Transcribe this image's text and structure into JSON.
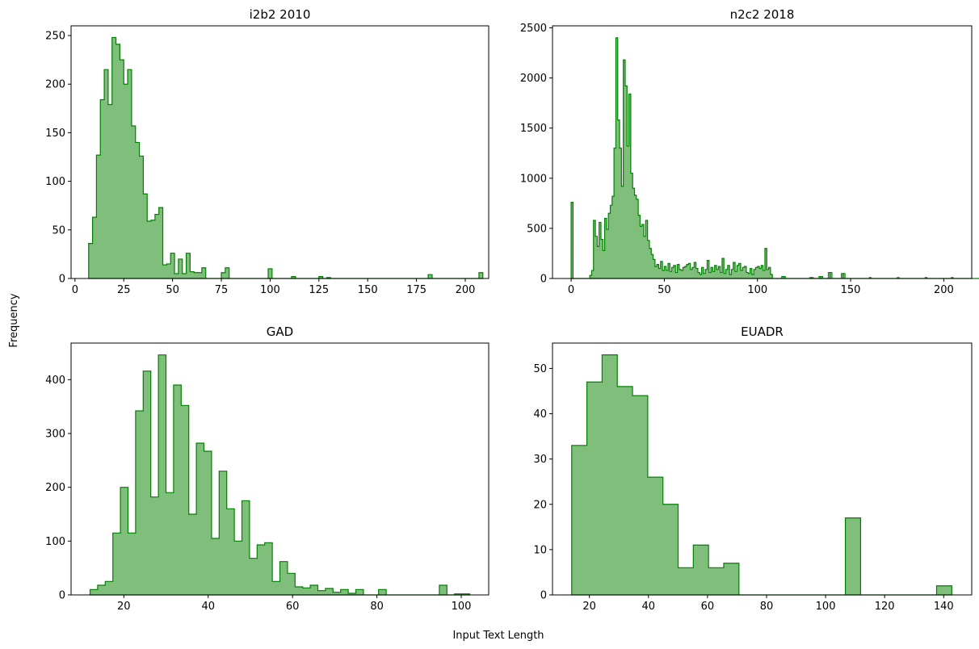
{
  "figure": {
    "xlabel": "Input Text Length",
    "ylabel": "Frequency",
    "fill_color": "#7fbf7b",
    "edge_color": "#008000"
  },
  "chart_data": [
    {
      "type": "histogram",
      "title": "i2b2 2010",
      "xlim": [
        -2,
        212
      ],
      "ylim": [
        0,
        260
      ],
      "xticks": [
        0,
        25,
        50,
        75,
        100,
        125,
        150,
        175,
        200
      ],
      "yticks": [
        0,
        50,
        100,
        150,
        200,
        250
      ],
      "bin_start": 7,
      "bin_width": 2,
      "values": [
        36,
        63,
        127,
        184,
        215,
        179,
        248,
        241,
        225,
        200,
        215,
        157,
        140,
        126,
        87,
        59,
        60,
        66,
        73,
        14,
        15,
        26,
        5,
        20,
        5,
        26,
        7,
        6,
        6,
        11,
        0,
        0,
        0,
        0,
        6,
        11,
        0,
        0,
        0,
        0,
        0,
        0,
        0,
        0,
        0,
        0,
        10,
        0,
        0,
        0,
        0,
        0,
        2,
        0,
        0,
        0,
        0,
        0,
        0,
        2,
        0,
        1,
        0,
        0,
        0,
        0,
        0,
        0,
        0,
        0,
        0,
        0,
        0,
        0,
        0,
        0,
        0,
        0,
        0,
        0,
        0,
        0,
        0,
        0,
        0,
        0,
        0,
        4,
        0,
        0,
        0,
        0,
        0,
        0,
        0,
        0,
        0,
        0,
        0,
        0,
        6
      ]
    },
    {
      "type": "histogram",
      "title": "n2c2 2018",
      "xlim": [
        -10,
        215
      ],
      "ylim": [
        0,
        2520
      ],
      "xticks": [
        0,
        50,
        100,
        150,
        200
      ],
      "yticks": [
        0,
        500,
        1000,
        1500,
        2000,
        2500
      ],
      "bin_start": 0,
      "bin_width": 1,
      "values": [
        760,
        0,
        0,
        0,
        0,
        0,
        0,
        0,
        0,
        0,
        30,
        80,
        580,
        420,
        320,
        560,
        390,
        280,
        600,
        490,
        650,
        730,
        820,
        1300,
        2400,
        1580,
        1300,
        920,
        2180,
        1920,
        1320,
        1840,
        1050,
        900,
        830,
        790,
        630,
        520,
        540,
        420,
        580,
        380,
        300,
        240,
        190,
        120,
        140,
        100,
        170,
        80,
        120,
        80,
        150,
        70,
        110,
        130,
        60,
        140,
        90,
        80,
        110,
        120,
        140,
        150,
        90,
        110,
        160,
        100,
        60,
        40,
        110,
        50,
        90,
        180,
        60,
        110,
        70,
        130,
        90,
        120,
        60,
        200,
        50,
        90,
        130,
        40,
        90,
        160,
        70,
        130,
        150,
        80,
        110,
        120,
        60,
        50,
        100,
        40,
        90,
        110,
        120,
        100,
        130,
        80,
        300,
        90,
        110,
        40,
        0,
        0,
        0,
        0,
        0,
        0,
        0,
        0,
        0,
        0,
        0,
        0,
        0,
        0,
        0,
        0,
        0,
        0,
        0,
        0,
        0,
        0,
        0,
        0,
        0,
        0,
        0,
        0,
        0,
        0,
        0,
        0,
        0,
        0,
        0,
        0,
        0,
        0,
        0,
        0,
        0,
        0,
        0,
        0,
        0,
        0,
        0,
        0,
        0,
        0,
        0,
        0,
        0,
        0,
        0,
        0,
        0,
        0,
        0,
        0,
        0,
        0,
        0,
        0,
        0,
        0,
        0,
        0,
        0,
        0,
        0,
        0,
        0,
        0,
        0,
        0,
        0,
        0,
        0,
        0,
        0,
        0,
        0,
        0,
        0,
        0,
        0,
        0,
        0,
        0,
        0,
        0,
        0,
        0,
        0,
        0,
        0,
        0,
        0,
        0,
        0,
        0,
        0,
        0,
        0,
        0,
        0,
        0,
        0,
        0,
        0,
        0,
        0,
        0,
        0,
        0,
        0,
        0,
        0,
        0,
        0,
        0
      ],
      "markers": [
        [
          113,
          20
        ],
        [
          114,
          20
        ],
        [
          128,
          10
        ],
        [
          129,
          10
        ],
        [
          133,
          20
        ],
        [
          134,
          20
        ],
        [
          138,
          60
        ],
        [
          139,
          60
        ],
        [
          145,
          50
        ],
        [
          146,
          50
        ],
        [
          160,
          10
        ],
        [
          175,
          10
        ],
        [
          190,
          10
        ],
        [
          204,
          10
        ]
      ]
    },
    {
      "type": "histogram",
      "title": "GAD",
      "xlim": [
        7.5,
        106.5
      ],
      "ylim": [
        0,
        468
      ],
      "xticks": [
        20,
        40,
        60,
        80,
        100
      ],
      "yticks": [
        0,
        100,
        200,
        300,
        400
      ],
      "bin_start": 12,
      "bin_width": 1.8,
      "values": [
        10,
        18,
        25,
        115,
        200,
        115,
        342,
        416,
        182,
        446,
        190,
        390,
        352,
        150,
        282,
        267,
        105,
        230,
        160,
        100,
        175,
        68,
        93,
        97,
        25,
        62,
        40,
        15,
        13,
        18,
        8,
        12,
        5,
        10,
        3,
        10,
        0,
        0,
        10,
        0,
        0,
        0,
        0,
        0,
        0,
        0,
        18,
        0,
        2,
        2
      ]
    },
    {
      "type": "histogram",
      "title": "EUADR",
      "xlim": [
        7.5,
        149.5
      ],
      "ylim": [
        0,
        55.6
      ],
      "xticks": [
        20,
        40,
        60,
        80,
        100,
        120,
        140
      ],
      "yticks": [
        0,
        10,
        20,
        30,
        40,
        50
      ],
      "bin_start": 14,
      "bin_width": 5.15,
      "values": [
        33,
        47,
        53,
        46,
        44,
        26,
        20,
        6,
        11,
        6,
        7,
        0,
        0,
        0,
        0,
        0,
        0,
        0,
        17,
        0,
        0,
        0,
        0,
        0,
        2
      ]
    }
  ]
}
